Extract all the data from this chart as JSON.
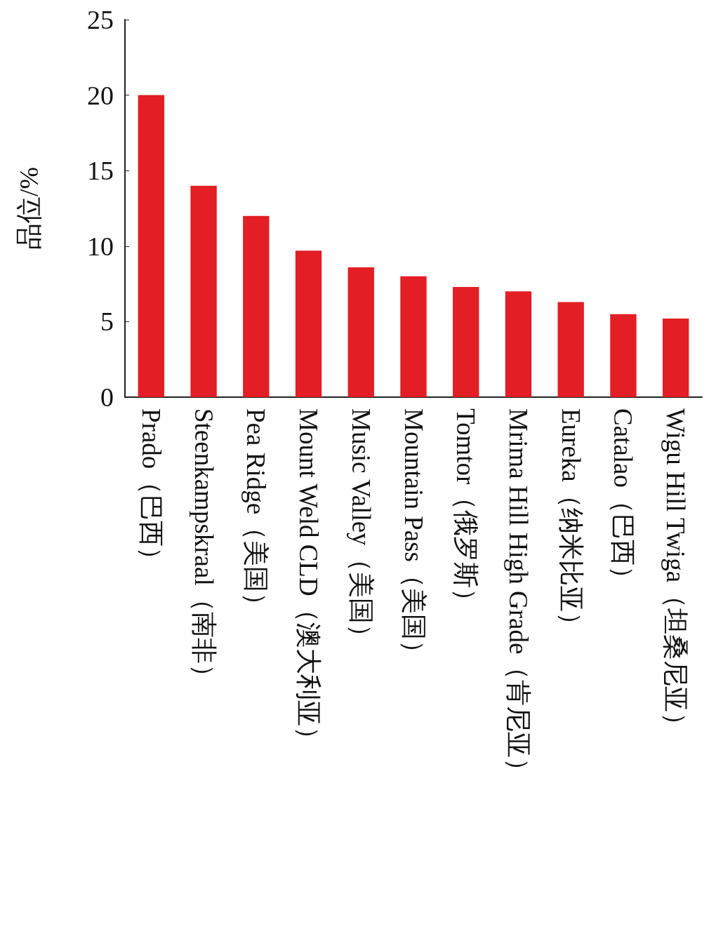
{
  "chart_data": {
    "type": "bar",
    "ylabel": "品位/%",
    "categories": [
      "Prado（巴西）",
      "Steenkampskraal（南非）",
      "Pea Ridge（美国）",
      "Mount Weld CLD（澳大利亚）",
      "Music Valley（美国）",
      "Mountain Pass（美国）",
      "Tomtor（俄罗斯）",
      "Mrima Hill High Grade（肯尼亚）",
      "Eureka（纳米比亚）",
      "Catalao（巴西）",
      "Wigu Hill Twiga（坦桑尼亚）"
    ],
    "values": [
      20,
      14,
      12,
      9.7,
      8.6,
      8,
      7.3,
      7,
      6.3,
      5.5,
      5.2
    ],
    "color": "#e31e24",
    "ylim": [
      0,
      25
    ],
    "yticks": [
      0,
      5,
      10,
      15,
      20,
      25
    ],
    "grid": false
  }
}
